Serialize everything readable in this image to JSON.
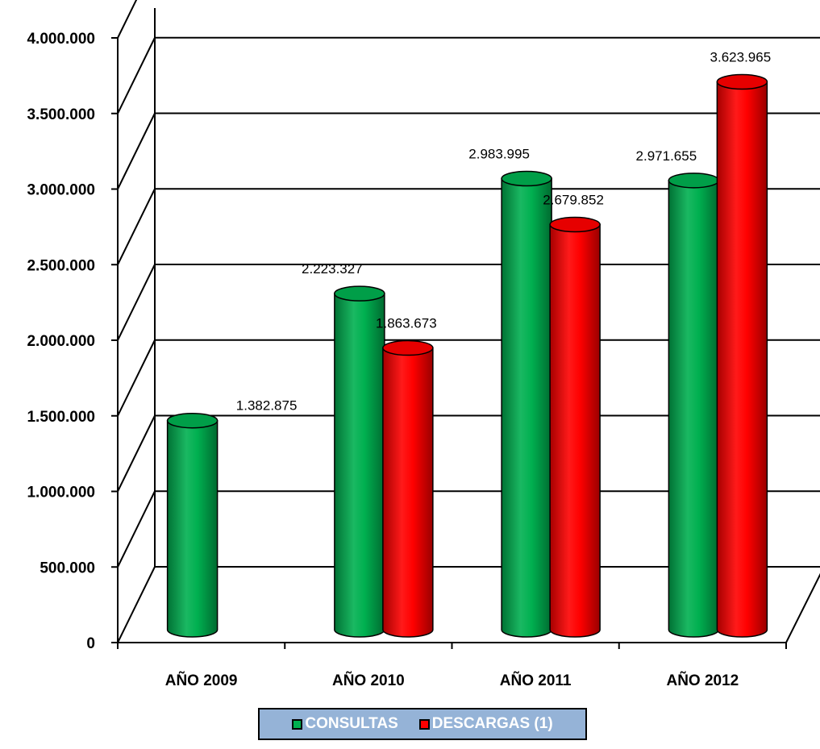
{
  "chart_data": {
    "type": "bar",
    "style": "3d-cylinder",
    "categories": [
      "AÑO 2009",
      "AÑO 2010",
      "AÑO 2011",
      "AÑO 2012"
    ],
    "series": [
      {
        "name": "CONSULTAS",
        "color": "#00b050",
        "values": [
          1382875,
          2223327,
          2983995,
          2971655
        ],
        "labels": [
          "1.382.875",
          "2.223.327",
          "2.983.995",
          "2.971.655"
        ]
      },
      {
        "name": "DESCARGAS (1)",
        "color": "#ff0000",
        "values": [
          null,
          1863673,
          2679852,
          3623965
        ],
        "labels": [
          "",
          "1.863.673",
          "2.679.852",
          "3.623.965"
        ]
      }
    ],
    "yticks": [
      "0",
      "500.000",
      "1.000.000",
      "1.500.000",
      "2.000.000",
      "2.500.000",
      "3.000.000",
      "3.500.000",
      "4.000.000"
    ],
    "ylim": [
      0,
      4000000
    ],
    "grid": true,
    "legend_position": "bottom",
    "legend_background": "#95b3d7"
  }
}
